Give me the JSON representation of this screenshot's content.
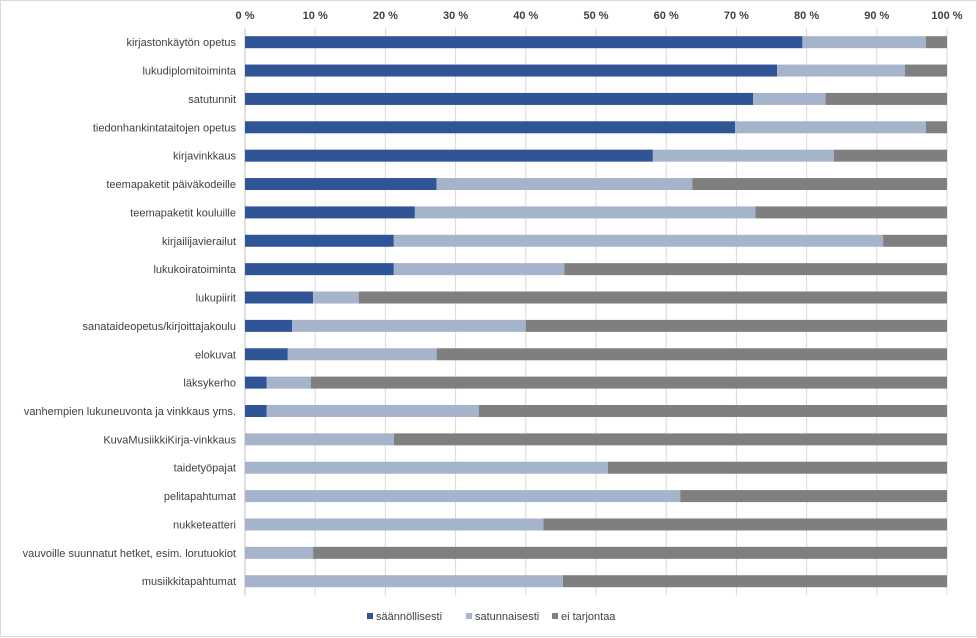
{
  "chart_data": {
    "type": "bar",
    "orientation": "horizontal",
    "stacked": "percent",
    "categories": [
      "kirjastonkäytön opetus",
      "lukudiplomitoiminta",
      "satutunnit",
      "tiedonhankintataitojen opetus",
      "kirjavinkkaus",
      "teemapaketit päiväkodeille",
      "teemapaketit kouluille",
      "kirjailijavierailut",
      "lukukoiratoiminta",
      "lukupiirit",
      "sanataideopetus/kirjoittajakoulu",
      "elokuvat",
      "läksykerho",
      "vanhempien lukuneuvonta ja vinkkaus yms.",
      "KuvaMusiikkiKirja-vinkkaus",
      "taidetyöpajat",
      "pelitapahtumat",
      "nukketeatteri",
      "vauvoille suunnatut hetket, esim. lorutuokiot",
      "musiikkitapahtumat"
    ],
    "series": [
      {
        "name": "säännöllisesti",
        "color": "#2f5597",
        "values": [
          79.4,
          75.8,
          72.4,
          69.8,
          58.1,
          27.3,
          24.2,
          21.2,
          21.2,
          9.7,
          6.7,
          6.1,
          3.1,
          3.1,
          0,
          0,
          0,
          0,
          0,
          0
        ]
      },
      {
        "name": "satunnaisesti",
        "color": "#a5b4cb",
        "values": [
          17.6,
          18.2,
          10.3,
          27.2,
          25.8,
          36.4,
          48.5,
          69.7,
          24.3,
          6.5,
          33.3,
          21.2,
          6.3,
          30.2,
          21.2,
          51.7,
          62.0,
          42.5,
          9.7,
          45.3
        ]
      },
      {
        "name": "ei tarjontaa",
        "color": "#7f7f7f",
        "values": [
          3.0,
          6.0,
          17.3,
          3.0,
          16.1,
          36.3,
          27.3,
          9.1,
          54.5,
          83.8,
          60.0,
          72.7,
          90.6,
          66.7,
          78.8,
          48.3,
          38.0,
          57.5,
          90.3,
          54.7
        ]
      }
    ],
    "x_ticks": [
      "0 %",
      "10 %",
      "20 %",
      "30 %",
      "40 %",
      "50 %",
      "60 %",
      "70 %",
      "80 %",
      "90 %",
      "100 %"
    ],
    "xlim": [
      0,
      100
    ],
    "x_axis_position": "top",
    "grid": true,
    "legend_position": "bottom",
    "title": "",
    "xlabel": "",
    "ylabel": ""
  }
}
